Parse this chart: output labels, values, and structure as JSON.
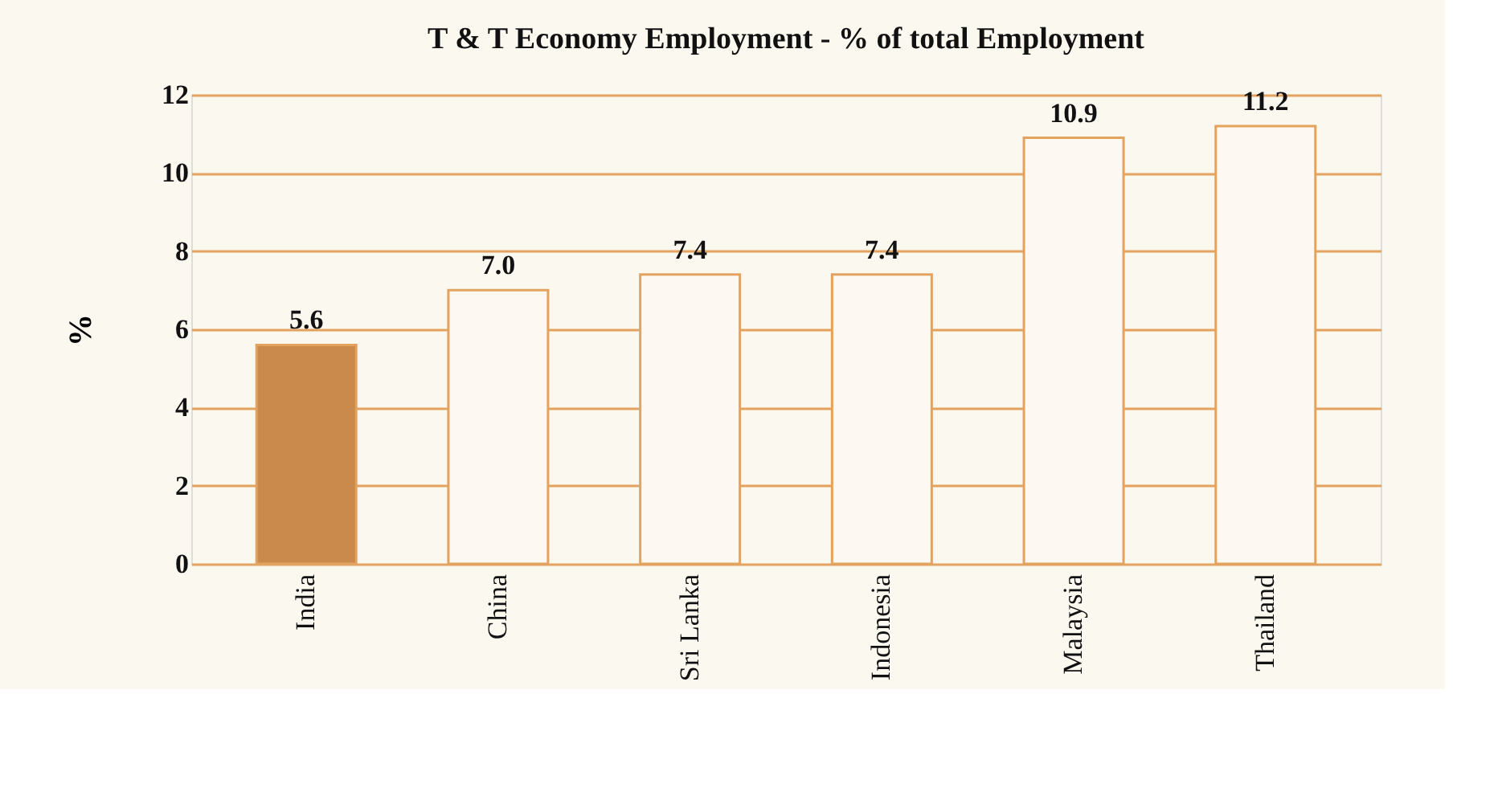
{
  "chart_data": {
    "type": "bar",
    "title": "T & T Economy Employment - % of total Employment",
    "ylabel": "%",
    "categories": [
      "India",
      "China",
      "Sri Lanka",
      "Indonesia",
      "Malaysia",
      "Thailand"
    ],
    "values": [
      5.6,
      7.0,
      7.4,
      7.4,
      10.9,
      11.2
    ],
    "value_labels": [
      "5.6",
      "7.0",
      "7.4",
      "7.4",
      "10.9",
      "11.2"
    ],
    "colors": [
      "#c98a4b",
      "#fdf9f2",
      "#fdf9f2",
      "#fdf9f2",
      "#fdf9f2",
      "#fdf9f2"
    ],
    "ylim": [
      0,
      12
    ],
    "yticks": [
      0,
      2,
      4,
      6,
      8,
      10,
      12
    ],
    "grid": "y"
  }
}
